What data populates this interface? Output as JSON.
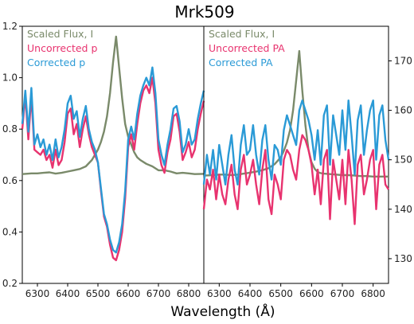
{
  "chart_data": [
    {
      "panel": "left",
      "type": "line",
      "title": "Mrk509",
      "xlabel": "Wavelength (Å)",
      "xlim": [
        6250,
        6850
      ],
      "ylim": [
        0.2,
        1.2
      ],
      "x_ticks": [
        6300,
        6400,
        6500,
        6600,
        6700,
        6800
      ],
      "y_ticks": [
        0.2,
        0.4,
        0.6,
        0.8,
        1.0,
        1.2
      ],
      "y_tick_labels": [
        "0.2",
        "0.4",
        "0.6",
        "0.8",
        "1.0",
        "1.2"
      ],
      "grid": false,
      "legend_position": "top-left",
      "series": [
        {
          "name": "Scaled Flux, I",
          "color": "#7a8a6a",
          "x": [
            6250,
            6280,
            6300,
            6320,
            6340,
            6360,
            6380,
            6400,
            6420,
            6440,
            6460,
            6480,
            6500,
            6510,
            6520,
            6530,
            6540,
            6550,
            6560,
            6570,
            6580,
            6590,
            6600,
            6610,
            6620,
            6630,
            6640,
            6660,
            6680,
            6700,
            6720,
            6740,
            6760,
            6780,
            6800,
            6820,
            6850
          ],
          "values": [
            0.625,
            0.628,
            0.628,
            0.63,
            0.632,
            0.627,
            0.63,
            0.635,
            0.64,
            0.645,
            0.655,
            0.68,
            0.72,
            0.75,
            0.79,
            0.85,
            0.94,
            1.06,
            1.16,
            1.04,
            0.92,
            0.82,
            0.77,
            0.74,
            0.71,
            0.69,
            0.68,
            0.665,
            0.655,
            0.64,
            0.64,
            0.635,
            0.628,
            0.63,
            0.628,
            0.625,
            0.626
          ]
        },
        {
          "name": "Uncorrected p",
          "color": "#e8336f",
          "x": [
            6250,
            6260,
            6270,
            6280,
            6290,
            6300,
            6310,
            6320,
            6330,
            6340,
            6350,
            6360,
            6370,
            6380,
            6390,
            6400,
            6410,
            6420,
            6430,
            6440,
            6450,
            6460,
            6470,
            6480,
            6490,
            6500,
            6510,
            6520,
            6530,
            6540,
            6550,
            6560,
            6570,
            6580,
            6590,
            6600,
            6610,
            6620,
            6630,
            6640,
            6650,
            6660,
            6670,
            6680,
            6690,
            6700,
            6710,
            6720,
            6730,
            6740,
            6750,
            6760,
            6770,
            6780,
            6790,
            6800,
            6810,
            6820,
            6830,
            6840,
            6850
          ],
          "values": [
            0.8,
            0.93,
            0.76,
            0.93,
            0.72,
            0.71,
            0.7,
            0.72,
            0.68,
            0.7,
            0.65,
            0.72,
            0.66,
            0.68,
            0.75,
            0.86,
            0.88,
            0.78,
            0.82,
            0.73,
            0.8,
            0.85,
            0.78,
            0.73,
            0.7,
            0.67,
            0.56,
            0.46,
            0.42,
            0.35,
            0.3,
            0.29,
            0.33,
            0.4,
            0.53,
            0.73,
            0.78,
            0.72,
            0.82,
            0.9,
            0.95,
            0.97,
            0.94,
            1.0,
            0.9,
            0.72,
            0.66,
            0.63,
            0.71,
            0.76,
            0.85,
            0.86,
            0.79,
            0.68,
            0.71,
            0.75,
            0.69,
            0.72,
            0.8,
            0.86,
            0.91
          ]
        },
        {
          "name": "Corrected p",
          "color": "#2a9ad6",
          "x": [
            6250,
            6260,
            6270,
            6280,
            6290,
            6300,
            6310,
            6320,
            6330,
            6340,
            6350,
            6360,
            6370,
            6380,
            6390,
            6400,
            6410,
            6420,
            6430,
            6440,
            6450,
            6460,
            6470,
            6480,
            6490,
            6500,
            6510,
            6520,
            6530,
            6540,
            6550,
            6560,
            6570,
            6580,
            6590,
            6600,
            6610,
            6620,
            6630,
            6640,
            6650,
            6660,
            6670,
            6680,
            6690,
            6700,
            6710,
            6720,
            6730,
            6740,
            6750,
            6760,
            6770,
            6780,
            6790,
            6800,
            6810,
            6820,
            6830,
            6840,
            6850
          ],
          "values": [
            0.82,
            0.95,
            0.79,
            0.96,
            0.74,
            0.78,
            0.73,
            0.76,
            0.7,
            0.74,
            0.68,
            0.76,
            0.69,
            0.73,
            0.8,
            0.9,
            0.93,
            0.84,
            0.87,
            0.77,
            0.84,
            0.89,
            0.8,
            0.75,
            0.72,
            0.67,
            0.57,
            0.47,
            0.43,
            0.37,
            0.33,
            0.32,
            0.36,
            0.43,
            0.56,
            0.76,
            0.81,
            0.76,
            0.86,
            0.93,
            0.97,
            1.0,
            0.97,
            1.04,
            0.94,
            0.76,
            0.7,
            0.66,
            0.74,
            0.8,
            0.88,
            0.89,
            0.83,
            0.71,
            0.74,
            0.8,
            0.74,
            0.76,
            0.84,
            0.9,
            0.95
          ]
        }
      ]
    },
    {
      "panel": "right",
      "type": "line",
      "xlim": [
        6250,
        6850
      ],
      "ylim": [
        125,
        177
      ],
      "x_ticks": [
        6300,
        6400,
        6500,
        6600,
        6700,
        6800
      ],
      "y_ticks": [
        130,
        140,
        150,
        160,
        170
      ],
      "grid": false,
      "legend_position": "top-left",
      "series": [
        {
          "name": "Scaled Flux, I",
          "color": "#7a8a6a",
          "x": [
            6250,
            6280,
            6300,
            6320,
            6340,
            6360,
            6380,
            6400,
            6420,
            6440,
            6460,
            6480,
            6500,
            6510,
            6520,
            6530,
            6540,
            6550,
            6560,
            6570,
            6580,
            6590,
            6600,
            6610,
            6620,
            6630,
            6640,
            6660,
            6680,
            6700,
            6720,
            6740,
            6760,
            6780,
            6800,
            6820,
            6850
          ],
          "values": [
            146.8,
            146.9,
            147.0,
            147.0,
            146.9,
            147.0,
            147.2,
            147.4,
            147.6,
            147.9,
            148.3,
            149.1,
            150.5,
            151.8,
            153.5,
            156.0,
            160.0,
            166.0,
            172.0,
            164.0,
            157.0,
            152.0,
            149.5,
            148.2,
            147.5,
            147.3,
            147.2,
            147.1,
            147.0,
            146.9,
            146.9,
            146.8,
            146.7,
            146.7,
            146.6,
            146.6,
            146.6
          ]
        },
        {
          "name": "Uncorrected PA",
          "color": "#e8336f",
          "x": [
            6250,
            6260,
            6270,
            6280,
            6290,
            6300,
            6310,
            6320,
            6330,
            6340,
            6350,
            6360,
            6370,
            6380,
            6390,
            6400,
            6410,
            6420,
            6430,
            6440,
            6450,
            6460,
            6470,
            6480,
            6490,
            6500,
            6510,
            6520,
            6530,
            6540,
            6550,
            6560,
            6570,
            6580,
            6590,
            6600,
            6610,
            6620,
            6630,
            6640,
            6650,
            6660,
            6670,
            6680,
            6690,
            6700,
            6710,
            6720,
            6730,
            6740,
            6750,
            6760,
            6770,
            6780,
            6790,
            6800,
            6810,
            6820,
            6830,
            6840,
            6850
          ],
          "values": [
            140,
            146,
            144,
            148,
            142,
            147,
            143,
            141,
            146,
            149,
            143,
            140,
            148,
            151,
            145,
            147,
            150,
            145,
            141,
            148,
            152,
            142,
            139,
            147,
            145,
            142,
            150,
            152,
            151,
            148,
            146,
            152,
            155,
            154,
            152,
            149,
            143,
            148,
            141,
            150,
            152,
            138,
            150,
            146,
            142,
            150,
            141,
            152,
            146,
            137,
            149,
            151,
            143,
            146,
            150,
            152,
            140,
            149,
            151,
            145,
            144
          ]
        },
        {
          "name": "Corrected PA",
          "color": "#2a9ad6",
          "x": [
            6250,
            6260,
            6270,
            6280,
            6290,
            6300,
            6310,
            6320,
            6330,
            6340,
            6350,
            6360,
            6370,
            6380,
            6390,
            6400,
            6410,
            6420,
            6430,
            6440,
            6450,
            6460,
            6470,
            6480,
            6490,
            6500,
            6510,
            6520,
            6530,
            6540,
            6550,
            6560,
            6570,
            6580,
            6590,
            6600,
            6610,
            6620,
            6630,
            6640,
            6650,
            6660,
            6670,
            6680,
            6690,
            6700,
            6710,
            6720,
            6730,
            6740,
            6750,
            6760,
            6770,
            6780,
            6790,
            6800,
            6810,
            6820,
            6830,
            6840,
            6850
          ],
          "values": [
            145,
            151,
            147,
            152,
            146,
            153,
            149,
            145,
            151,
            155,
            148,
            145,
            153,
            157,
            151,
            152,
            157,
            151,
            147,
            154,
            157,
            150,
            146,
            153,
            152,
            149,
            156,
            159,
            157,
            155,
            153,
            160,
            162,
            160,
            158,
            155,
            150,
            156,
            149,
            159,
            161,
            149,
            159,
            155,
            151,
            160,
            152,
            162,
            155,
            147,
            158,
            161,
            151,
            156,
            160,
            162,
            150,
            159,
            161,
            154,
            150
          ]
        }
      ]
    }
  ],
  "right_axis_tick_labels": [
    "130",
    "140",
    "150",
    "160",
    "170"
  ],
  "x_tick_labels": [
    "6300",
    "6400",
    "6500",
    "6600",
    "6700",
    "6800"
  ]
}
